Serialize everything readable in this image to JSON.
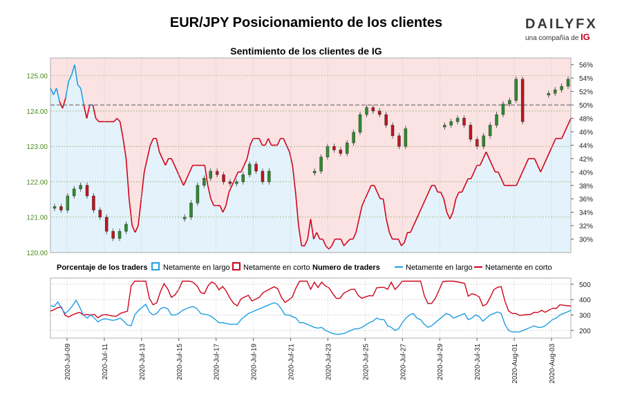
{
  "header": {
    "title": "EUR/JPY Posicionamiento de los clientes",
    "subtitle": "Sentimiento de los clientes de IG",
    "logo_main": "DAILYFX",
    "logo_sub_prefix": "una compañía de ",
    "logo_sub_brand": "IG"
  },
  "legend": {
    "pct_title": "Porcentaje de los traders",
    "pct_long": "Netamente en largo",
    "pct_short": "Netamente en corto",
    "num_title": "Numero de traders",
    "num_long": "Netamente en largo",
    "num_short": "Netamente en corto"
  },
  "colors": {
    "long": "#1e9de3",
    "short": "#d0021b",
    "long_fill": "#e4f3fb",
    "short_fill": "#fbe3e3",
    "candle_up": "#2e8b2e",
    "candle_down": "#c0141c",
    "price_axis": "#4a8a1a"
  },
  "chart_data": [
    {
      "type": "line",
      "name": "price-and-sentiment",
      "price_axis": {
        "ylim": [
          120.0,
          125.5
        ],
        "ticks": [
          "125.00",
          "124.00",
          "123.00",
          "122.00",
          "121.00",
          "120.00"
        ]
      },
      "pct_axis": {
        "ylim": [
          28,
          57
        ],
        "ticks": [
          "56%",
          "54%",
          "52%",
          "50%",
          "48%",
          "46%",
          "44%",
          "42%",
          "40%",
          "38%",
          "36%",
          "34%",
          "32%",
          "30%"
        ]
      },
      "x_tick_labels": [
        "2020-Jul-09",
        "2020-Jul-11",
        "2020-Jul-13",
        "2020-Jul-15",
        "2020-Jul-17",
        "2020-Jul-19",
        "2020-Jul-21",
        "2020-Jul-23",
        "2020-Jul-25",
        "2020-Jul-27",
        "2020-Jul-29",
        "2020-Jul-31",
        "2020-Aug-01",
        "2020-Aug-03"
      ],
      "net_long_pct": [
        52.5,
        51.5,
        52.5,
        50.5,
        49.5,
        51,
        53.5,
        54.5,
        56,
        53,
        52.5,
        50,
        48,
        50,
        50,
        48,
        47.5,
        47.5,
        47.5,
        47.5,
        47.5,
        47.5,
        48,
        47.5,
        45,
        42,
        36,
        32,
        31,
        32,
        36,
        40,
        42,
        44,
        45,
        45,
        43,
        42,
        41,
        42,
        42,
        41,
        40,
        39,
        38,
        39,
        40,
        41,
        41,
        41,
        41,
        41,
        38,
        36,
        35,
        35,
        35,
        34,
        35,
        37,
        38,
        39,
        40,
        40,
        41,
        42,
        44,
        45,
        45,
        45,
        44,
        44,
        45,
        44,
        44,
        44,
        45,
        45,
        44,
        43,
        41,
        37,
        32,
        29,
        29,
        30,
        33,
        30,
        31,
        30,
        30,
        29,
        28.5,
        29,
        30,
        30,
        30,
        29,
        29.5,
        30,
        30,
        31,
        33,
        35,
        36,
        37,
        38,
        38,
        37,
        36,
        36,
        33,
        31,
        30,
        30,
        30,
        29,
        29.5,
        31,
        31,
        32,
        33,
        34,
        35,
        36,
        37,
        38,
        38,
        37,
        37,
        36,
        34,
        33,
        34,
        36,
        37,
        37,
        38,
        39,
        39,
        40,
        41,
        41,
        42,
        43,
        42,
        41,
        40,
        40,
        39,
        38,
        38,
        38,
        38,
        38,
        39,
        40,
        41,
        42,
        42,
        42,
        41,
        40,
        41,
        42,
        43,
        44,
        45,
        45,
        45,
        46,
        47,
        48
      ]
    },
    {
      "type": "line",
      "name": "number-of-traders",
      "ylim": [
        150,
        540
      ],
      "ticks": [
        "500",
        "400",
        "300",
        "200"
      ],
      "net_long": [
        360,
        355,
        385,
        345,
        310,
        330,
        360,
        395,
        350,
        300,
        280,
        300,
        280,
        255,
        270,
        275,
        270,
        265,
        270,
        280,
        260,
        235,
        230,
        300,
        330,
        350,
        370,
        320,
        300,
        310,
        340,
        350,
        340,
        300,
        300,
        310,
        330,
        340,
        350,
        355,
        340,
        310,
        305,
        300,
        290,
        270,
        250,
        250,
        245,
        240,
        240,
        240,
        270,
        290,
        310,
        320,
        330,
        340,
        350,
        360,
        370,
        380,
        370,
        340,
        300,
        300,
        290,
        280,
        250,
        250,
        240,
        230,
        220,
        215,
        220,
        200,
        190,
        180,
        175,
        175,
        180,
        190,
        200,
        210,
        210,
        220,
        235,
        250,
        260,
        280,
        270,
        270,
        230,
        220,
        200,
        210,
        250,
        280,
        300,
        310,
        280,
        270,
        240,
        220,
        230,
        250,
        270,
        290,
        310,
        300,
        280,
        290,
        300,
        310,
        270,
        280,
        300,
        290,
        260,
        280,
        300,
        310,
        320,
        310,
        240,
        200,
        190,
        190,
        190,
        200,
        210,
        220,
        230,
        220,
        220,
        230,
        250,
        270,
        280,
        300,
        310,
        320,
        330
      ]
    }
  ]
}
